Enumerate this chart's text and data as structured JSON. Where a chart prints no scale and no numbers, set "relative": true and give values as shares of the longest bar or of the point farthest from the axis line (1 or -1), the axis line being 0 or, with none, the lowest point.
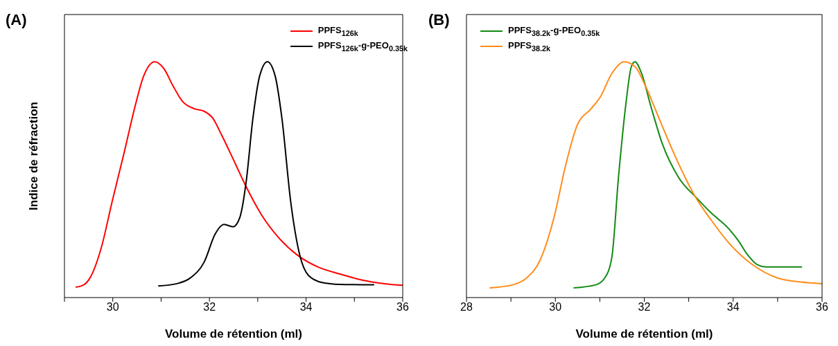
{
  "chart_data": [
    {
      "type": "line",
      "title": "(A)",
      "xlabel": "Volume de rétention (ml)",
      "ylabel": "Indice de réfraction",
      "relative": true,
      "xlim": [
        29,
        36
      ],
      "xticks": [
        {
          "value": 29,
          "label": null
        },
        30,
        {
          "value": 31,
          "label": null
        },
        32,
        {
          "value": 33,
          "label": null
        },
        34,
        {
          "value": 35,
          "label": null
        },
        36
      ],
      "legend": "top right",
      "marker": "none",
      "line_style": "solid",
      "series": [
        {
          "name": "PPFS$_{126k}$",
          "color": "#ff0000",
          "x": [
            29.23,
            29.4,
            29.53,
            29.76,
            29.99,
            30.23,
            30.46,
            30.64,
            30.87,
            31.06,
            31.24,
            31.45,
            31.7,
            31.89,
            32.07,
            32.25,
            32.53,
            32.76,
            33.08,
            33.45,
            33.82,
            34.24,
            34.7,
            35.16,
            35.62,
            36.0
          ],
          "values": [
            0.044,
            0.054,
            0.084,
            0.21,
            0.41,
            0.61,
            0.81,
            0.94,
            1.0,
            0.97,
            0.9,
            0.83,
            0.8,
            0.79,
            0.76,
            0.69,
            0.57,
            0.47,
            0.35,
            0.25,
            0.18,
            0.13,
            0.1,
            0.074,
            0.059,
            0.052
          ]
        },
        {
          "name": "PPFS$_{126k}$-g-PEO$_{0.35k}$",
          "color": "#000000",
          "x": [
            30.94,
            31.33,
            31.61,
            31.89,
            32.12,
            32.3,
            32.49,
            32.63,
            32.76,
            32.9,
            33.04,
            33.2,
            33.36,
            33.5,
            33.68,
            33.87,
            34.05,
            34.33,
            34.7,
            35.41
          ],
          "values": [
            0.049,
            0.059,
            0.084,
            0.15,
            0.27,
            0.31,
            0.3,
            0.34,
            0.49,
            0.76,
            0.94,
            1.0,
            0.94,
            0.76,
            0.41,
            0.18,
            0.094,
            0.064,
            0.056,
            0.054
          ]
        }
      ]
    },
    {
      "type": "line",
      "title": "(B)",
      "xlabel": "Volume de rétention (ml)",
      "relative": true,
      "xlim": [
        28,
        36
      ],
      "xticks": [
        28,
        {
          "value": 29,
          "label": null
        },
        30,
        {
          "value": 31,
          "label": null
        },
        32,
        {
          "value": 33,
          "label": null
        },
        34,
        {
          "value": 35,
          "label": null
        },
        36
      ],
      "legend": "top left",
      "marker": "none",
      "line_style": "solid",
      "series": [
        {
          "name": "PPFS$_{38.2k}$-g-PEO$_{0.35k}$",
          "color": "#138a13",
          "x": [
            30.41,
            30.91,
            31.11,
            31.27,
            31.42,
            31.58,
            31.71,
            31.79,
            31.94,
            32.15,
            32.41,
            32.77,
            33.19,
            33.5,
            33.91,
            34.12,
            34.33,
            34.54,
            34.74,
            35.55
          ],
          "values": [
            0.041,
            0.054,
            0.083,
            0.17,
            0.51,
            0.81,
            0.98,
            1.0,
            0.95,
            0.81,
            0.65,
            0.51,
            0.42,
            0.36,
            0.29,
            0.24,
            0.18,
            0.14,
            0.13,
            0.13
          ]
        },
        {
          "name": "PPFS$_{38.2k}$",
          "color": "#ff8c1a",
          "x": [
            28.52,
            29.04,
            29.35,
            29.66,
            29.97,
            30.23,
            30.49,
            30.8,
            31.01,
            31.27,
            31.55,
            31.79,
            32.02,
            32.31,
            32.67,
            33.14,
            33.5,
            33.91,
            34.43,
            35.0,
            35.52,
            36.0
          ],
          "values": [
            0.041,
            0.054,
            0.083,
            0.16,
            0.34,
            0.56,
            0.73,
            0.8,
            0.85,
            0.95,
            1.0,
            0.98,
            0.9,
            0.77,
            0.61,
            0.43,
            0.33,
            0.23,
            0.14,
            0.083,
            0.066,
            0.059
          ]
        }
      ]
    }
  ]
}
